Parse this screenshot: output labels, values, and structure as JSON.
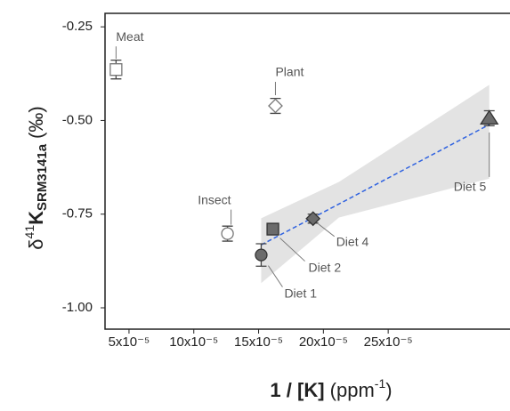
{
  "chart_data": {
    "type": "scatter",
    "x_label": {
      "bold": "1 / [K]",
      "text": "(ppm",
      "sup": "-1",
      "close": ")"
    },
    "y_label": {
      "delta": "δ",
      "sup": "41",
      "bold": "K",
      "sub": "SRM3141a",
      "unit": "(‰)"
    },
    "xlim": [
      3.15e-05,
      0.000344
    ],
    "ylim": [
      -1.057,
      -0.214
    ],
    "xticks": [
      {
        "value": 5e-05,
        "label": "5x10⁻⁵"
      },
      {
        "value": 0.0001,
        "label": "10x10⁻⁵"
      },
      {
        "value": 0.00015,
        "label": "15x10⁻⁵"
      },
      {
        "value": 0.0002,
        "label": "20x10⁻⁵"
      },
      {
        "value": 0.00025,
        "label": "25x10⁻⁵"
      }
    ],
    "yticks": [
      -0.25,
      {
        "value": -0.5,
        "label": "-0.50"
      },
      -0.75,
      {
        "value": -1,
        "label": "-1.00"
      }
    ],
    "series": [
      {
        "name": "Meat",
        "marker": "square",
        "color": "#ffffff",
        "x": [
          4e-05
        ],
        "values": [
          -0.364
        ],
        "errors": [
          0.025
        ]
      },
      {
        "name": "Plant",
        "marker": "diamond",
        "color": "#ffffff",
        "x": [
          0.000163
        ],
        "values": [
          -0.461
        ],
        "errors": [
          0.02
        ]
      },
      {
        "name": "Insect",
        "marker": "circle",
        "color": "#ffffff",
        "x": [
          0.000126
        ],
        "values": [
          -0.802
        ],
        "errors": [
          0.02
        ]
      },
      {
        "name": "Diet 1",
        "marker": "circle",
        "color": "#6b6b6b",
        "x": [
          0.000152
        ],
        "values": [
          -0.859
        ],
        "errors": [
          0.03
        ]
      },
      {
        "name": "Diet 2",
        "marker": "square",
        "color": "#6b6b6b",
        "x": [
          0.000161
        ],
        "values": [
          -0.79
        ],
        "errors": [
          0.015
        ]
      },
      {
        "name": "Diet 4",
        "marker": "diamond",
        "color": "#6b6b6b",
        "x": [
          0.000192
        ],
        "values": [
          -0.762
        ],
        "errors": [
          0.012
        ]
      },
      {
        "name": "Diet 5",
        "marker": "triangle",
        "color": "#6b6b6b",
        "x": [
          0.000328
        ],
        "values": [
          -0.494
        ],
        "errors": [
          0.02
        ]
      }
    ],
    "fit": {
      "color": "#2f62e0",
      "band_color": "#e3e3e3",
      "x": [
        0.000152,
        0.000212,
        0.000328
      ],
      "values": [
        -0.832,
        -0.723,
        -0.511
      ],
      "band_lower": [
        -0.934,
        -0.759,
        -0.655
      ],
      "band_upper": [
        -0.761,
        -0.664,
        -0.405
      ]
    }
  }
}
